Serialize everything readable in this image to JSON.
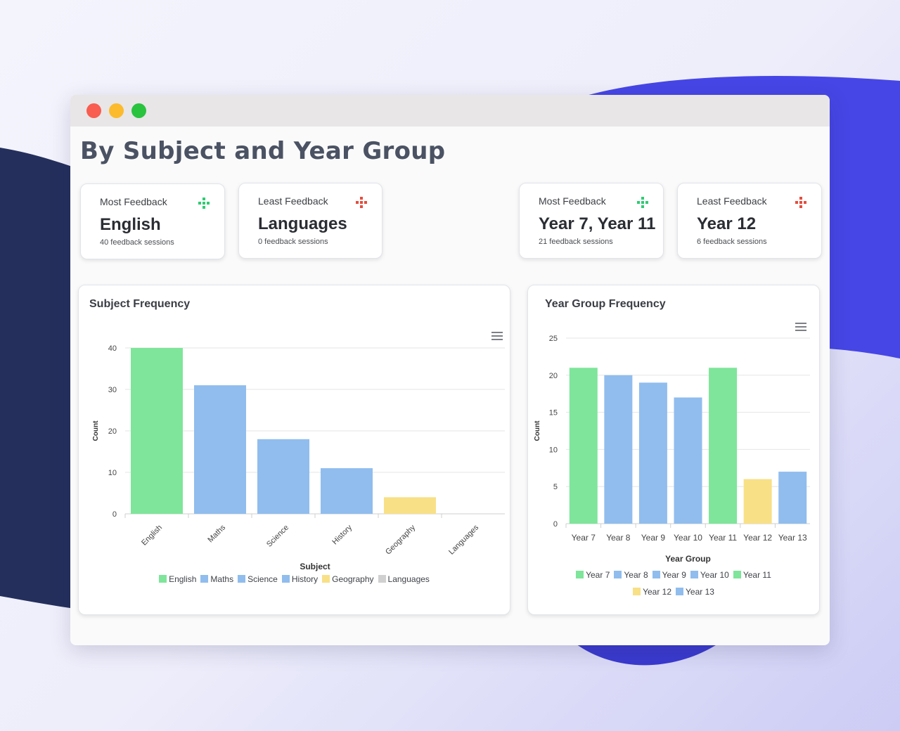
{
  "window": {
    "title": "By Subject and Year Group"
  },
  "stats": [
    {
      "label": "Most Feedback",
      "value": "English",
      "sub": "40 feedback sessions",
      "icon": "up-icon",
      "icon_color": "#2ecc71"
    },
    {
      "label": "Least Feedback",
      "value": "Languages",
      "sub": "0 feedback sessions",
      "icon": "down-icon",
      "icon_color": "#e74c3c"
    },
    {
      "label": "Most Feedback",
      "value": "Year 7, Year 11",
      "sub": "21 feedback sessions",
      "icon": "up-icon",
      "icon_color": "#2ecc71"
    },
    {
      "label": "Least Feedback",
      "value": "Year 12",
      "sub": "6 feedback sessions",
      "icon": "down-icon",
      "icon_color": "#e74c3c"
    }
  ],
  "colors": {
    "green": "#7ee59a",
    "blue": "#90bdee",
    "yellow": "#f8e087",
    "grey": "#d0d0d0"
  },
  "chart_data": [
    {
      "type": "bar",
      "title": "Subject Frequency",
      "xlabel": "Subject",
      "ylabel": "Count",
      "categories": [
        "English",
        "Maths",
        "Science",
        "History",
        "Geography",
        "Languages"
      ],
      "values": [
        40,
        31,
        18,
        11,
        4,
        0
      ],
      "colors": [
        "#7ee59a",
        "#90bdee",
        "#90bdee",
        "#90bdee",
        "#f8e087",
        "#d0d0d0"
      ],
      "ylim": [
        0,
        40
      ],
      "yticks": [
        0,
        10,
        20,
        30,
        40
      ],
      "legend": [
        "English",
        "Maths",
        "Science",
        "History",
        "Geography",
        "Languages"
      ]
    },
    {
      "type": "bar",
      "title": "Year Group Frequency",
      "xlabel": "Year Group",
      "ylabel": "Count",
      "categories": [
        "Year 7",
        "Year 8",
        "Year 9",
        "Year 10",
        "Year 11",
        "Year 12",
        "Year 13"
      ],
      "values": [
        21,
        20,
        19,
        17,
        21,
        6,
        7
      ],
      "colors": [
        "#7ee59a",
        "#90bdee",
        "#90bdee",
        "#90bdee",
        "#7ee59a",
        "#f8e087",
        "#90bdee"
      ],
      "ylim": [
        0,
        25
      ],
      "yticks": [
        0,
        5,
        10,
        15,
        20,
        25
      ],
      "legend": [
        "Year 7",
        "Year 8",
        "Year 9",
        "Year 10",
        "Year 11",
        "Year 12",
        "Year 13"
      ]
    }
  ]
}
